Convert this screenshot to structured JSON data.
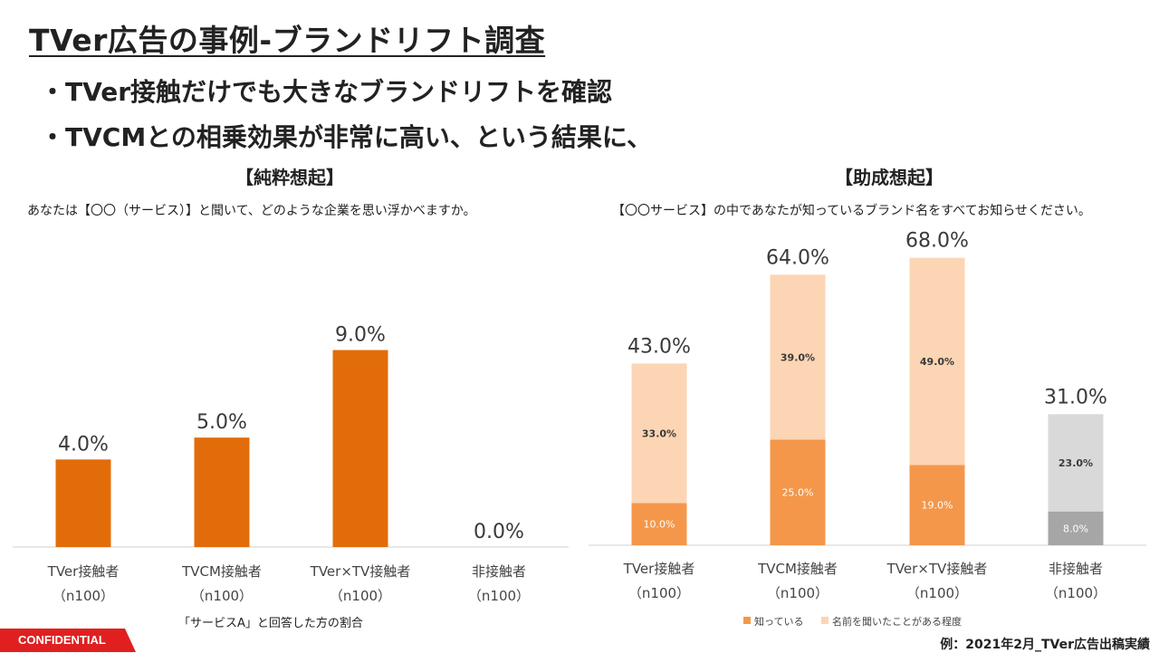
{
  "slide": {
    "title": "TVer広告の事例-ブランドリフト調査",
    "bullets": [
      "・TVer接触だけでも大きなブランドリフトを確認",
      "・TVCMとの相乗効果が非常に高い、という結果に、"
    ],
    "confidential": "CONFIDENTIAL",
    "source": "例：2021年2月_TVer広告出稿実績"
  },
  "chart_data": [
    {
      "type": "bar",
      "title": "【純粋想起】",
      "question": "あなたは【〇〇（サービス）】と聞いて、どのような企業を思い浮かべますか。",
      "categories": [
        "TVer接触者",
        "TVCM接触者",
        "TVer×TV接触者",
        "非接触者"
      ],
      "sample": [
        "（n100）",
        "（n100）",
        "（n100）",
        "（n100）"
      ],
      "series": [
        {
          "values": [
            4.0,
            5.0,
            9.0,
            0.0
          ]
        }
      ],
      "data_labels": [
        "4.0%",
        "5.0%",
        "9.0%",
        "0.0%"
      ],
      "ylim": [
        0,
        12
      ],
      "color": "#e36c0a",
      "footnote": "「サービスA」と回答した方の割合"
    },
    {
      "type": "bar",
      "stacked": true,
      "title": "【助成想起】",
      "question": "【〇〇サービス】の中であなたが知っているブランド名をすべてお知らせください。",
      "categories": [
        "TVer接触者",
        "TVCM接触者",
        "TVer×TV接触者",
        "非接触者"
      ],
      "sample": [
        "（n100）",
        "（n100）",
        "（n100）",
        "（n100）"
      ],
      "series": [
        {
          "name": "知っている",
          "values": [
            10.0,
            25.0,
            19.0,
            8.0
          ],
          "labels": [
            "10.0%",
            "25.0%",
            "19.0%",
            "8.0%"
          ]
        },
        {
          "name": "名前を聞いたことがある程度",
          "values": [
            33.0,
            39.0,
            49.0,
            23.0
          ],
          "labels": [
            "33.0%",
            "39.0%",
            "49.0%",
            "23.0%"
          ]
        }
      ],
      "totals": [
        43.0,
        64.0,
        68.0,
        31.0
      ],
      "total_labels": [
        "43.0%",
        "64.0%",
        "68.0%",
        "31.0%"
      ],
      "ylim": [
        0,
        72
      ],
      "colors": {
        "known": [
          "#f4974a",
          "#f4974a",
          "#f4974a",
          "#a6a6a6"
        ],
        "heard": [
          "#fcd5b4",
          "#fcd5b4",
          "#fcd5b4",
          "#d9d9d9"
        ]
      },
      "legend_position": "bottom"
    }
  ]
}
